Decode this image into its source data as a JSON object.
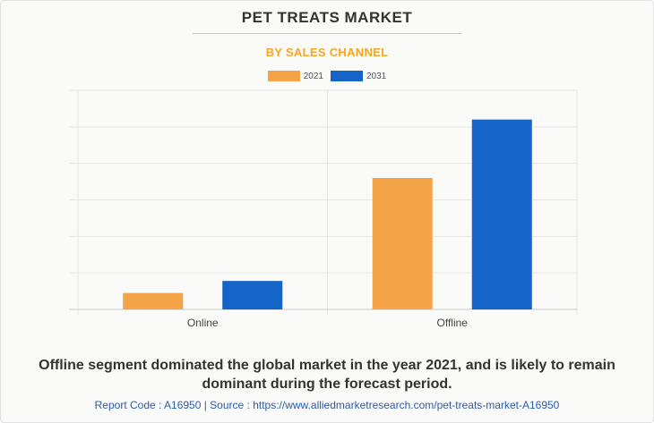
{
  "title": "PET TREATS MARKET",
  "subtitle": "BY SALES CHANNEL",
  "caption": "Offline segment dominated the global market in the year 2021, and is likely to remain dominant during the forecast period.",
  "footer": "Report Code : A16950  |  Source : https://www.alliedmarketresearch.com/pet-treats-market-A16950",
  "colors": {
    "series_2021": "#f4a447",
    "series_2031": "#1565c8",
    "accent": "#f5a623"
  },
  "chart_data": {
    "type": "bar",
    "categories": [
      "Online",
      "Offline"
    ],
    "series": [
      {
        "name": "2021",
        "values": [
          0.45,
          3.6
        ]
      },
      {
        "name": "2031",
        "values": [
          0.78,
          5.2
        ]
      }
    ],
    "ylim": [
      0,
      6
    ],
    "grid": true,
    "y_tick_labels_shown": false,
    "legend_position": "top-center"
  }
}
